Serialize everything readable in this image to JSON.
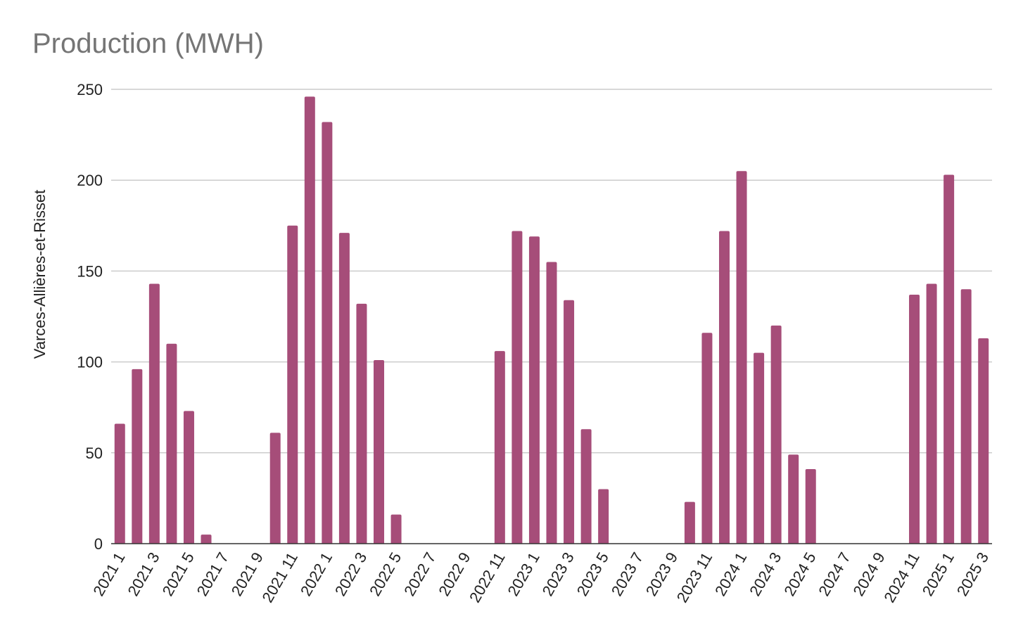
{
  "chart_data": {
    "type": "bar",
    "title": "Production (MWH)",
    "xlabel": "",
    "ylabel": "Varces-Allières-et-Risset",
    "ylim": [
      0,
      250
    ],
    "yticks": [
      0,
      50,
      100,
      150,
      200,
      250
    ],
    "grid": true,
    "bar_color": "#a64d79",
    "categories": [
      "2021 1",
      "2021 2",
      "2021 3",
      "2021 4",
      "2021 5",
      "2021 6",
      "2021 7",
      "2021 8",
      "2021 9",
      "2021 10",
      "2021 11",
      "2021 12",
      "2022 1",
      "2022 2",
      "2022 3",
      "2022 4",
      "2022 5",
      "2022 6",
      "2022 7",
      "2022 8",
      "2022 9",
      "2022 10",
      "2022 11",
      "2022 12",
      "2023 1",
      "2023 2",
      "2023 3",
      "2023 4",
      "2023 5",
      "2023 6",
      "2023 7",
      "2023 8",
      "2023 9",
      "2023 10",
      "2023 11",
      "2023 12",
      "2024 1",
      "2024 2",
      "2024 3",
      "2024 4",
      "2024 5",
      "2024 6",
      "2024 7",
      "2024 8",
      "2024 9",
      "2024 10",
      "2024 11",
      "2024 12",
      "2025 1",
      "2025 2",
      "2025 3"
    ],
    "tick_labels": [
      "2021 1",
      "2021 3",
      "2021 5",
      "2021 7",
      "2021 9",
      "2021 11",
      "2022 1",
      "2022 3",
      "2022 5",
      "2022 7",
      "2022 9",
      "2022 11",
      "2023 1",
      "2023 3",
      "2023 5",
      "2023 7",
      "2023 9",
      "2023 11",
      "2024 1",
      "2024 3",
      "2024 5",
      "2024 7",
      "2024 9",
      "2024 11",
      "2025 1",
      "2025 3"
    ],
    "values": [
      66,
      96,
      143,
      110,
      73,
      5,
      0,
      0,
      0,
      61,
      175,
      246,
      232,
      171,
      132,
      101,
      16,
      0,
      0,
      0,
      0,
      0,
      106,
      172,
      169,
      155,
      134,
      63,
      30,
      0,
      0,
      0,
      0,
      23,
      116,
      172,
      205,
      105,
      120,
      49,
      41,
      0,
      0,
      0,
      0,
      0,
      137,
      143,
      203,
      140,
      113
    ]
  }
}
